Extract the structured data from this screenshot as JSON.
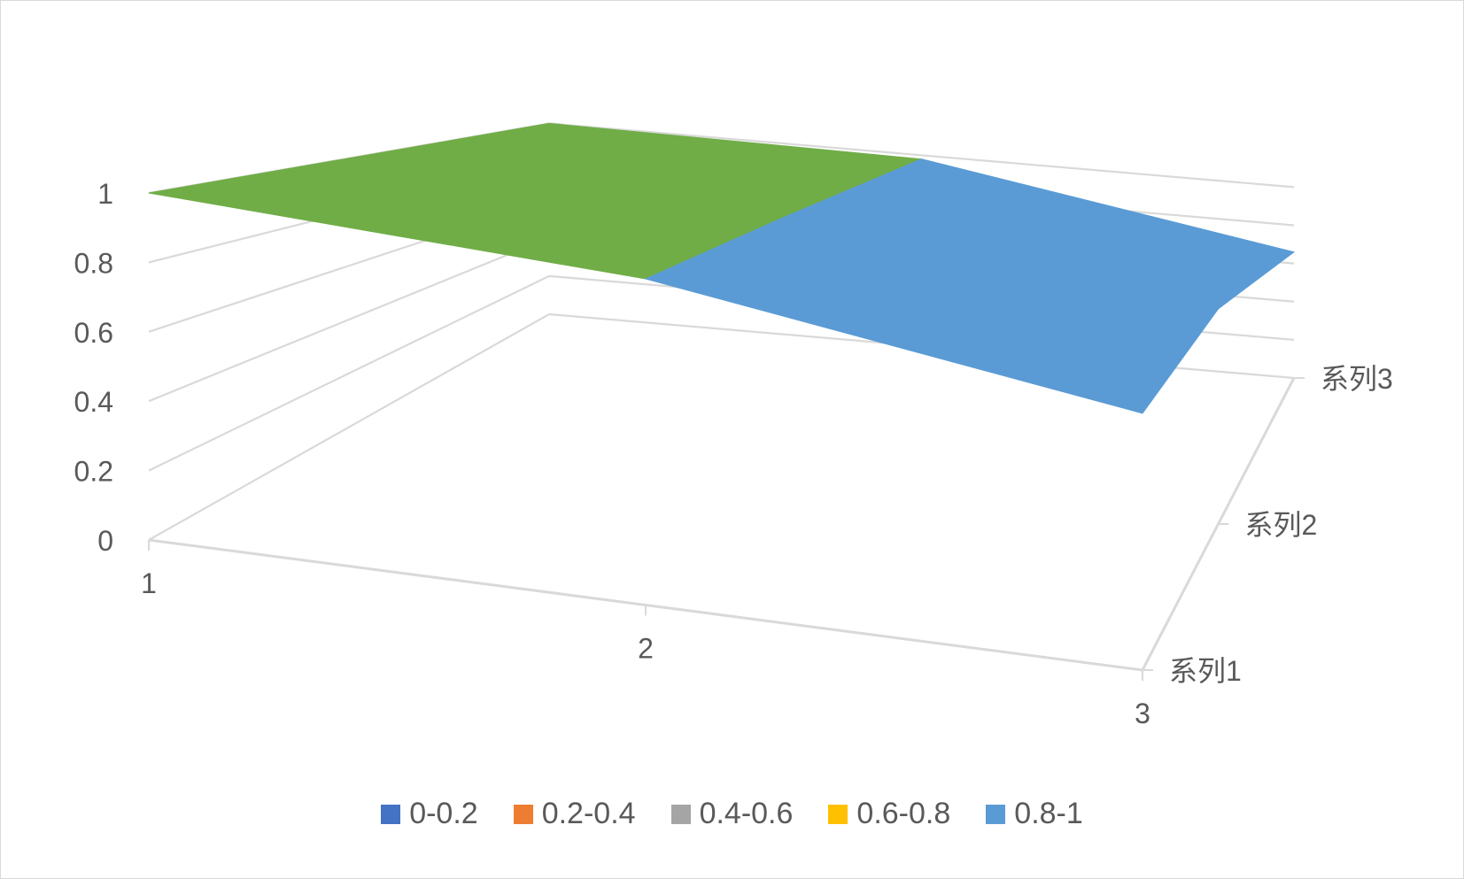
{
  "chart_data": {
    "type": "surface",
    "x_categories": [
      "1",
      "2",
      "3"
    ],
    "series_axis": [
      "系列1",
      "系列2",
      "系列3"
    ],
    "z_ticks": [
      "0",
      "0.2",
      "0.4",
      "0.6",
      "0.8",
      "1"
    ],
    "zlim": [
      0,
      1
    ],
    "grid": true,
    "series": [
      {
        "name": "系列1",
        "values": [
          1.0,
          0.94,
          0.74
        ]
      },
      {
        "name": "系列2",
        "values": [
          1.0,
          0.96,
          0.8
        ]
      },
      {
        "name": "系列3",
        "values": [
          1.0,
          0.98,
          0.66
        ]
      }
    ],
    "legend": {
      "position": "bottom",
      "items": [
        {
          "label": "0-0.2",
          "color": "#4472C4"
        },
        {
          "label": "0.2-0.4",
          "color": "#ED7D31"
        },
        {
          "label": "0.4-0.6",
          "color": "#A5A5A5"
        },
        {
          "label": "0.6-0.8",
          "color": "#FFC000"
        },
        {
          "label": "0.8-1",
          "color": "#5B9BD5"
        }
      ]
    },
    "band_colors": {
      "top": "#70AD47",
      "dark": "#3F3F3F"
    }
  }
}
